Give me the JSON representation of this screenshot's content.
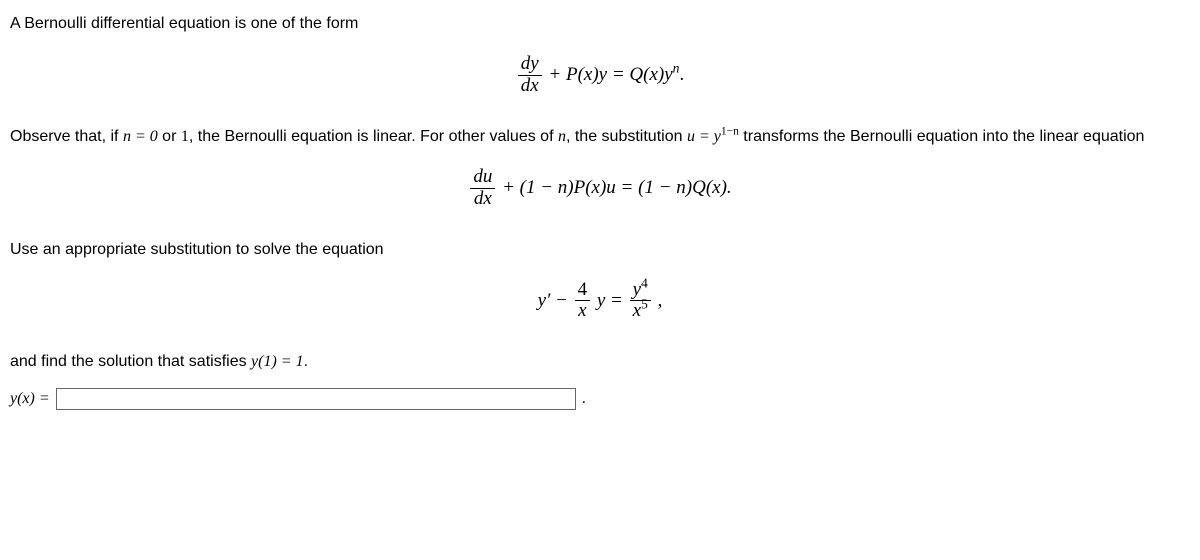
{
  "p1": "A Bernoulli differential equation is one of the form",
  "eq1": {
    "frac_num": "dy",
    "frac_den": "dx",
    "rest": " + P(x)y = Q(x)y",
    "sup": "n",
    "tail": "."
  },
  "p2a": "Observe that, if ",
  "p2b": "n = 0",
  "p2c": " or ",
  "p2d": "1",
  "p2e": ", the Bernoulli equation is linear. For other values of ",
  "p2f": "n",
  "p2g": ", the substitution ",
  "p2h": "u = y",
  "p2h_sup": "1−n",
  "p2i": " transforms the Bernoulli equation into the linear equation",
  "eq2": {
    "frac_num": "du",
    "frac_den": "dx",
    "rest": " + (1 − n)P(x)u = (1 − n)Q(x)."
  },
  "p3": "Use an appropriate substitution to solve the equation",
  "eq3": {
    "lead": "y′ − ",
    "f1_num": "4",
    "f1_den": "x",
    "mid": " y = ",
    "f2_num": "y",
    "f2_num_sup": "4",
    "f2_den": "x",
    "f2_den_sup": "5",
    "tail": " ,"
  },
  "p4a": "and find the solution that satisfies ",
  "p4b": "y(1) = 1",
  "p4c": ".",
  "ans_label_a": "y(x) = ",
  "ans_value": "",
  "ans_trail": "."
}
